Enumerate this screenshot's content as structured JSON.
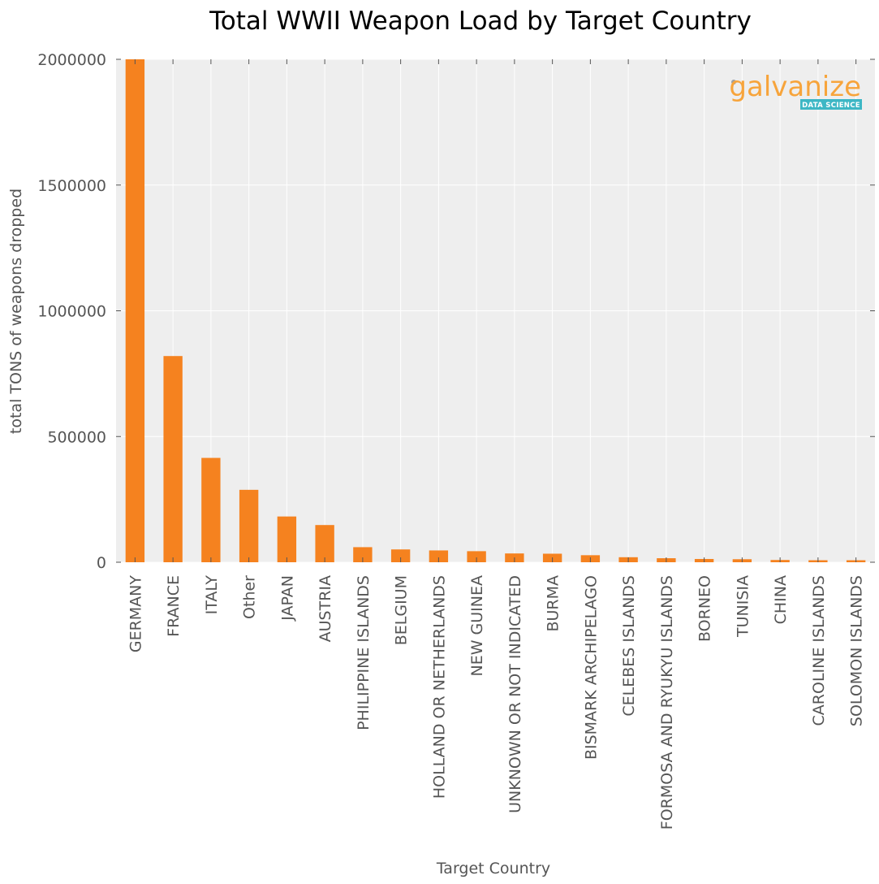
{
  "chart_data": {
    "type": "bar",
    "title": "Total WWII Weapon Load by Target Country",
    "xlabel": "Target Country",
    "ylabel": "total TONS of weapons dropped",
    "ylim": [
      0,
      2000000
    ],
    "yticks": [
      0,
      500000,
      1000000,
      1500000,
      2000000
    ],
    "grid": true,
    "bar_color": "#f5821f",
    "background_color": "#eeeeee",
    "categories": [
      "GERMANY",
      "FRANCE",
      "ITALY",
      "Other",
      "JAPAN",
      "AUSTRIA",
      "PHILIPPINE ISLANDS",
      "BELGIUM",
      "HOLLAND OR NETHERLANDS",
      "NEW GUINEA",
      "UNKNOWN OR NOT INDICATED",
      "BURMA",
      "BISMARK ARCHIPELAGO",
      "CELEBES ISLANDS",
      "FORMOSA AND RYUKYU ISLANDS",
      "BORNEO",
      "TUNISIA",
      "CHINA",
      "CAROLINE ISLANDS",
      "SOLOMON ISLANDS"
    ],
    "values": [
      2000000,
      820000,
      415000,
      288000,
      182000,
      148000,
      60000,
      51000,
      47000,
      44000,
      35000,
      34000,
      28000,
      20000,
      16000,
      13000,
      12000,
      9000,
      8000,
      8000
    ]
  },
  "logo": {
    "name": "galvanize",
    "tagline": "DATA SCIENCE",
    "name_color": "#f7a43b",
    "tagline_bg": "#3db7c5"
  }
}
